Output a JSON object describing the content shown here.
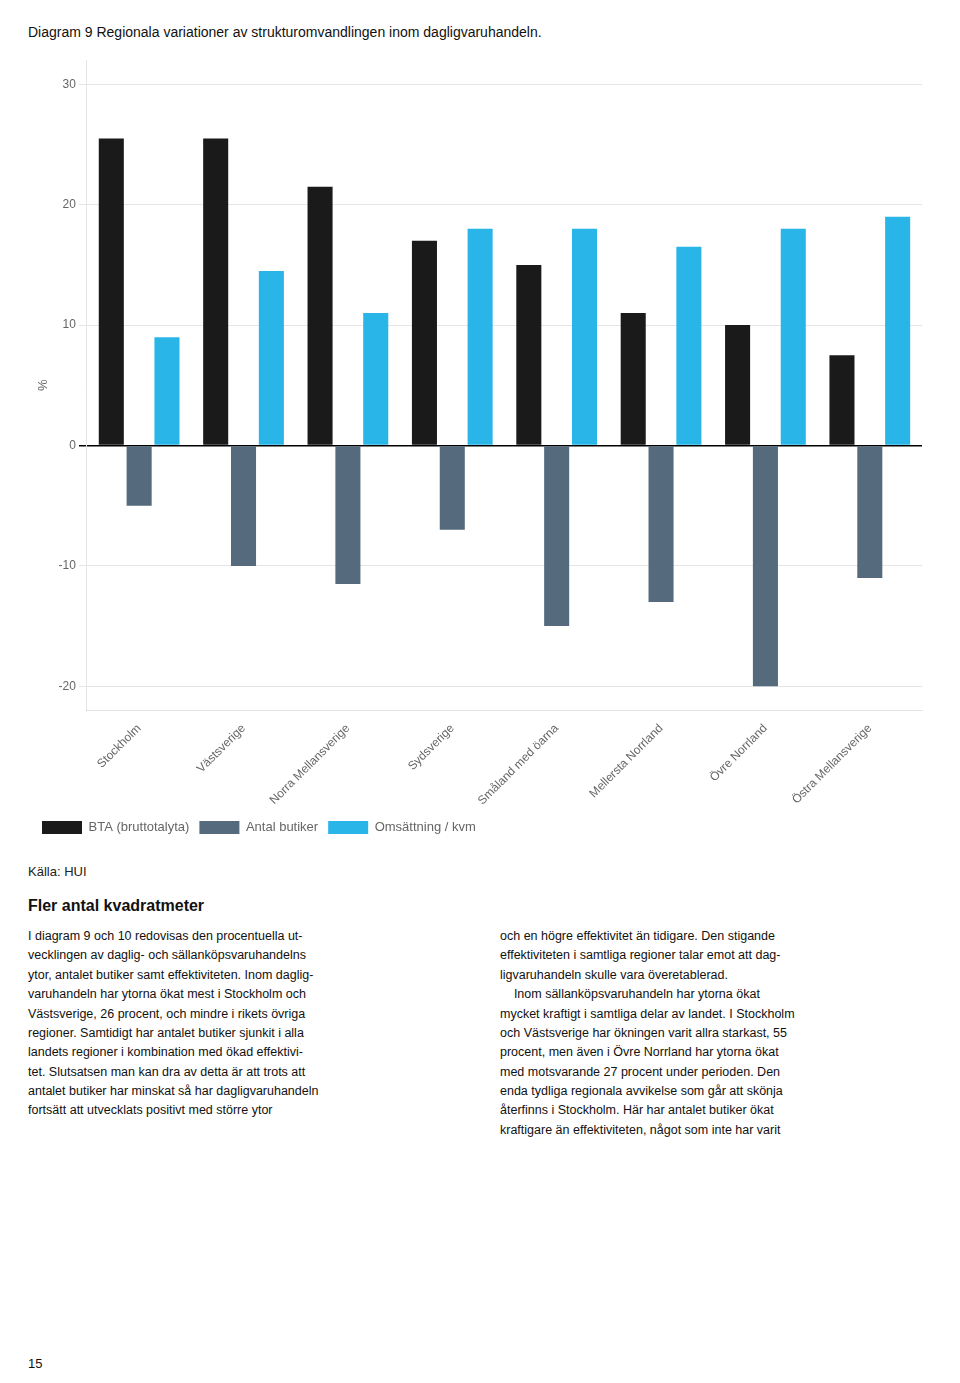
{
  "chart_data": {
    "type": "bar",
    "title": "Diagram 9 Regionala variationer av strukturomvandlingen inom dagligvaruhandeln.",
    "y_label": "%",
    "categories": [
      "Stockholm",
      "Västsverige",
      "Norra Mellansverige",
      "Sydsverige",
      "Småland med öarna",
      "Mellersta Norrland",
      "Övre Norrland",
      "Östra Mellansverige"
    ],
    "series": [
      {
        "name": "BTA (bruttotalyta)",
        "color": "#1a1a1a",
        "values": [
          25.5,
          25.5,
          21.5,
          17.0,
          15.0,
          11.0,
          10.0,
          7.5
        ]
      },
      {
        "name": "Antal butiker",
        "color": "#556b7d",
        "values": [
          -5.0,
          -10.0,
          -11.5,
          -7.0,
          -15.0,
          -13.0,
          -20.0,
          -11.0
        ]
      },
      {
        "name": "Omsättning / kvm",
        "color": "#29b5e8",
        "values": [
          9.0,
          14.5,
          11.0,
          18.0,
          18.0,
          16.5,
          18.0,
          19.0
        ]
      }
    ],
    "ylim": [
      -22,
      32
    ],
    "yticks": [
      -20,
      -10,
      0,
      10,
      20,
      30
    ],
    "grid": true,
    "legend": "bottom",
    "source": "Källa: HUI",
    "section_title": "Fler antal kvadratmeter",
    "body_text": [
      "I diagram 9 och 10 redovisas den procentuella ut-\nvecklingen av daglig- och sällanköpsvaruhandelns\nytor, antalet butiker samt effektiviteten. Inom daglig-\nvaruhandeln har ytorna ökat mest i Stockholm och\nVästsverige, 26 procent, och mindre i rikets övriga\nregioner. Samtidigt har antalet butiker sjunkit i alla\nlandets regioner i kombination med ökad effektivi-\ntet. Slutsatsen man kan dra av detta är att trots att\nantalet butiker har minskat så har dagligvaruhandeln\nfortsätt att utvecklats positivt med större ytor",
      "och en högre effektivitet än tidigare. Den stigande\neffektiviteten i samtliga regioner talar emot att dag-\nligvaruhandeln skulle vara överetablerad.\n    Inom sällanköpsvaruhandeln har ytorna ökat\nmycket kraftigt i samtliga delar av landet. I Stockholm\noch Västsverige har ökningen varit allra starkast, 55\nprocent, men även i Övre Norrland har ytorna ökat\nmed motsvarande 27 procent under perioden. Den\nenda tydliga regionala avvikelse som går att skönja\nåterfinns i Stockholm. Här har antalet butiker ökat\nkraftigare än effektiviteten, något som inte har varit"
    ],
    "page_number": "15"
  }
}
